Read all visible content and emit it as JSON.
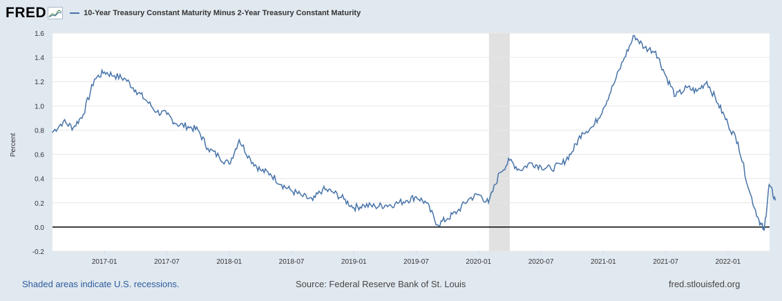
{
  "header": {
    "logo": "FRED",
    "series_title": "10-Year Treasury Constant Maturity Minus 2-Year Treasury Constant Maturity"
  },
  "colors": {
    "series": "#4572a7",
    "recession": "#e1e1e1",
    "background": "#e1e9f0"
  },
  "footer": {
    "recession_note": "Shaded areas indicate U.S. recessions.",
    "source": "Source: Federal Reserve Bank of St. Louis",
    "site": "fred.stlouisfed.org"
  },
  "chart_data": {
    "type": "line",
    "title": "10-Year Treasury Constant Maturity Minus 2-Year Treasury Constant Maturity",
    "xlabel": "",
    "ylabel": "Percent",
    "ylim": [
      -0.2,
      1.6
    ],
    "xlim": [
      "2016-08",
      "2022-05"
    ],
    "yticks": [
      "1.6",
      "1.4",
      "1.2",
      "1.0",
      "0.8",
      "0.6",
      "0.4",
      "0.2",
      "0.0",
      "-0.2"
    ],
    "xticks": [
      "2017-01",
      "2017-07",
      "2018-01",
      "2018-07",
      "2019-01",
      "2019-07",
      "2020-01",
      "2020-07",
      "2021-01",
      "2021-07",
      "2022-01"
    ],
    "recession": {
      "start": "2020-02",
      "end": "2020-04"
    },
    "zero_line": 0.0,
    "grid": true,
    "series": [
      {
        "name": "10-Year Treasury Constant Maturity Minus 2-Year Treasury Constant Maturity",
        "x": [
          2016.58,
          2016.67,
          2016.75,
          2016.83,
          2016.92,
          2017.0,
          2017.08,
          2017.17,
          2017.25,
          2017.33,
          2017.42,
          2017.5,
          2017.58,
          2017.67,
          2017.75,
          2017.83,
          2017.92,
          2018.0,
          2018.08,
          2018.17,
          2018.25,
          2018.33,
          2018.42,
          2018.5,
          2018.58,
          2018.67,
          2018.75,
          2018.83,
          2018.92,
          2019.0,
          2019.08,
          2019.17,
          2019.25,
          2019.33,
          2019.42,
          2019.5,
          2019.58,
          2019.67,
          2019.75,
          2019.83,
          2019.92,
          2020.0,
          2020.08,
          2020.17,
          2020.25,
          2020.33,
          2020.42,
          2020.5,
          2020.58,
          2020.67,
          2020.75,
          2020.83,
          2020.92,
          2021.0,
          2021.08,
          2021.17,
          2021.25,
          2021.33,
          2021.42,
          2021.5,
          2021.58,
          2021.67,
          2021.75,
          2021.83,
          2021.92,
          2022.0,
          2022.08,
          2022.17,
          2022.25,
          2022.29,
          2022.33,
          2022.38
        ],
        "values": [
          0.78,
          0.87,
          0.82,
          0.93,
          1.22,
          1.28,
          1.25,
          1.22,
          1.13,
          1.05,
          0.95,
          0.93,
          0.85,
          0.83,
          0.8,
          0.65,
          0.58,
          0.52,
          0.72,
          0.56,
          0.47,
          0.44,
          0.35,
          0.3,
          0.26,
          0.22,
          0.31,
          0.29,
          0.23,
          0.16,
          0.18,
          0.17,
          0.18,
          0.19,
          0.22,
          0.25,
          0.2,
          0.02,
          0.07,
          0.13,
          0.23,
          0.27,
          0.2,
          0.45,
          0.55,
          0.47,
          0.53,
          0.5,
          0.48,
          0.52,
          0.62,
          0.78,
          0.83,
          0.98,
          1.17,
          1.4,
          1.58,
          1.48,
          1.45,
          1.25,
          1.08,
          1.15,
          1.12,
          1.2,
          1.02,
          0.85,
          0.7,
          0.3,
          0.05,
          -0.03,
          0.35,
          0.22
        ]
      }
    ]
  }
}
